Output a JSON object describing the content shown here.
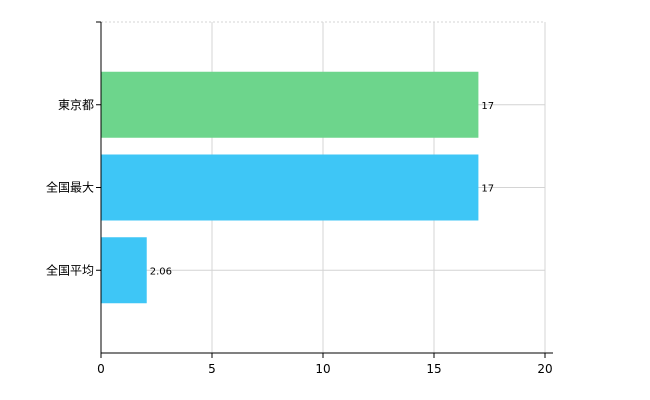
{
  "chart_data": {
    "type": "bar",
    "orientation": "horizontal",
    "categories": [
      "東京都",
      "全国最大",
      "全国平均"
    ],
    "values": [
      17,
      17,
      2.06
    ],
    "value_labels": [
      "17",
      "17",
      "2.06"
    ],
    "bar_colors": [
      "#6dd58c",
      "#3ec6f6",
      "#3ec6f6"
    ],
    "xlim": [
      0,
      20
    ],
    "x_ticks": [
      0,
      5,
      10,
      15,
      20
    ],
    "grid": true
  }
}
